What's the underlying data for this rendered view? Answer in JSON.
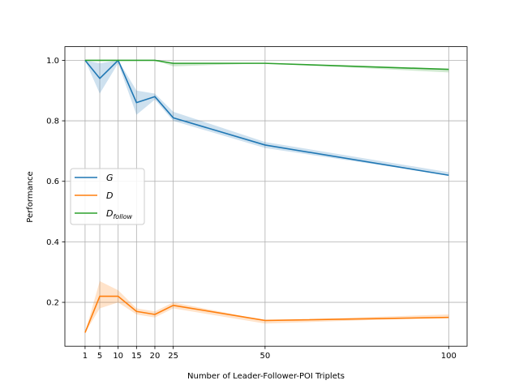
{
  "chart_data": {
    "type": "line",
    "xlabel": "Number of Leader-Follower-POI Triplets",
    "ylabel": "Performance",
    "xlim": [
      -4.5,
      105
    ],
    "ylim": [
      0.055,
      1.045
    ],
    "x": [
      1,
      5,
      10,
      15,
      20,
      25,
      50,
      100
    ],
    "xticks": [
      "1",
      "5",
      "10",
      "15",
      "20",
      "25",
      "50",
      "100"
    ],
    "yticks": [
      "0.2",
      "0.4",
      "0.6",
      "0.8",
      "1.0"
    ],
    "ytick_values": [
      0.2,
      0.4,
      0.6,
      0.8,
      1.0
    ],
    "grid": true,
    "legend_position": "center-left",
    "series": [
      {
        "name": "G",
        "name_main": "G",
        "name_sub": "",
        "color": "#1f77b4",
        "values": [
          1.0,
          0.94,
          1.0,
          0.86,
          0.88,
          0.81,
          0.72,
          0.62
        ],
        "lower": [
          1.0,
          0.89,
          0.99,
          0.82,
          0.87,
          0.8,
          0.71,
          0.62
        ],
        "upper": [
          1.0,
          0.99,
          1.0,
          0.9,
          0.89,
          0.83,
          0.73,
          0.63
        ]
      },
      {
        "name": "D",
        "name_main": "D",
        "name_sub": "",
        "color": "#ff7f0e",
        "values": [
          0.1,
          0.22,
          0.22,
          0.17,
          0.16,
          0.19,
          0.14,
          0.15
        ],
        "lower": [
          0.1,
          0.18,
          0.2,
          0.16,
          0.15,
          0.18,
          0.13,
          0.15
        ],
        "upper": [
          0.1,
          0.27,
          0.24,
          0.18,
          0.17,
          0.2,
          0.14,
          0.16
        ]
      },
      {
        "name": "D_follow",
        "name_main": "D",
        "name_sub": "follow",
        "color": "#2ca02c",
        "values": [
          1.0,
          1.0,
          1.0,
          1.0,
          1.0,
          0.99,
          0.99,
          0.97
        ],
        "lower": [
          1.0,
          1.0,
          1.0,
          1.0,
          1.0,
          0.98,
          0.99,
          0.96
        ],
        "upper": [
          1.0,
          1.0,
          1.0,
          1.0,
          1.0,
          0.99,
          0.99,
          0.97
        ]
      }
    ]
  }
}
